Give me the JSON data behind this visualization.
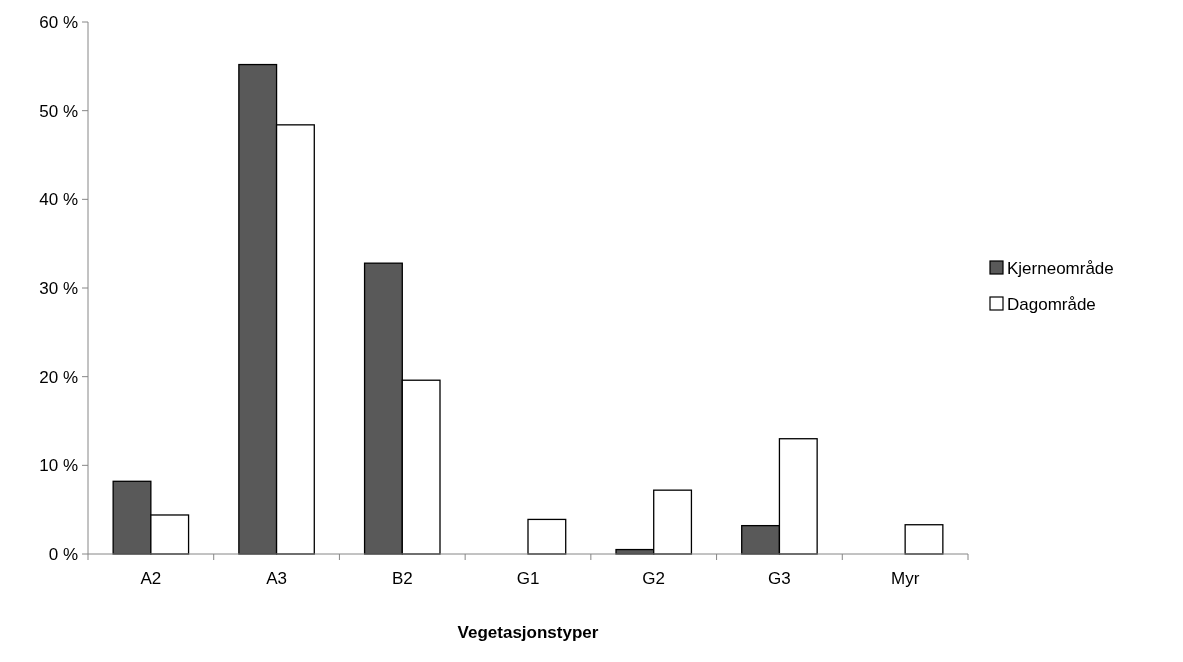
{
  "chart_data": {
    "type": "bar",
    "xlabel": "Vegetasjonstyper",
    "categories": [
      "A2",
      "A3",
      "B2",
      "G1",
      "G2",
      "G3",
      "Myr"
    ],
    "series": [
      {
        "name": "Kjerneområde",
        "color": "#595959",
        "values": [
          8.2,
          55.2,
          32.8,
          0,
          0.5,
          3.2,
          0
        ]
      },
      {
        "name": "Dagområde",
        "color": "#ffffff",
        "values": [
          4.4,
          48.4,
          19.6,
          3.9,
          7.2,
          13.0,
          3.3
        ]
      }
    ],
    "ylim": [
      0,
      60
    ],
    "yticks": [
      {
        "value": 0,
        "label": "0 %"
      },
      {
        "value": 10,
        "label": "10 %"
      },
      {
        "value": 20,
        "label": "20 %"
      },
      {
        "value": 30,
        "label": "30 %"
      },
      {
        "value": 40,
        "label": "40 %"
      },
      {
        "value": 50,
        "label": "50 %"
      },
      {
        "value": 60,
        "label": "60 %"
      }
    ],
    "grid": false,
    "legend": "right"
  }
}
